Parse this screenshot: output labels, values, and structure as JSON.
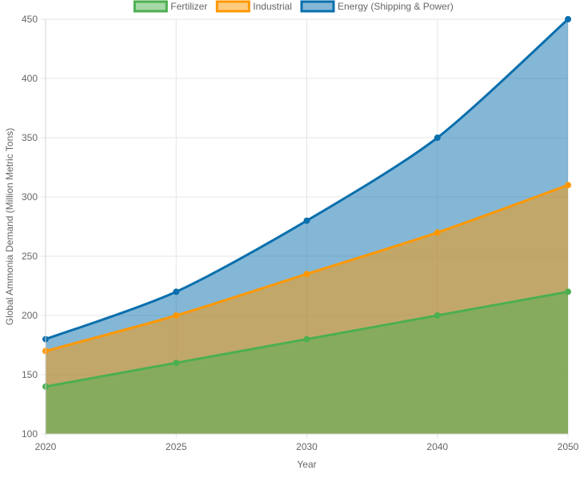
{
  "chart_data": {
    "type": "area",
    "stacked": false,
    "x": [
      "2020",
      "2025",
      "2030",
      "2040",
      "2050"
    ],
    "xlabel": "Year",
    "ylabel": "Global Ammonia Demand (Million Metric Tons)",
    "ylim": [
      100,
      450
    ],
    "yticks": [
      100,
      150,
      200,
      250,
      300,
      350,
      400,
      450
    ],
    "grid": true,
    "legend_position": "top",
    "series": [
      {
        "name": "Fertilizer",
        "values": [
          140,
          160,
          180,
          200,
          220
        ],
        "color": "#4caf50",
        "fill": "rgba(76,175,80,0.5)"
      },
      {
        "name": "Industrial",
        "values": [
          170,
          200,
          235,
          270,
          310
        ],
        "color": "#ff9800",
        "fill": "rgba(255,152,0,0.5)"
      },
      {
        "name": "Energy (Shipping & Power)",
        "values": [
          180,
          220,
          280,
          350,
          450
        ],
        "color": "#0a6fad",
        "fill": "rgba(10,111,173,0.5)"
      }
    ]
  }
}
